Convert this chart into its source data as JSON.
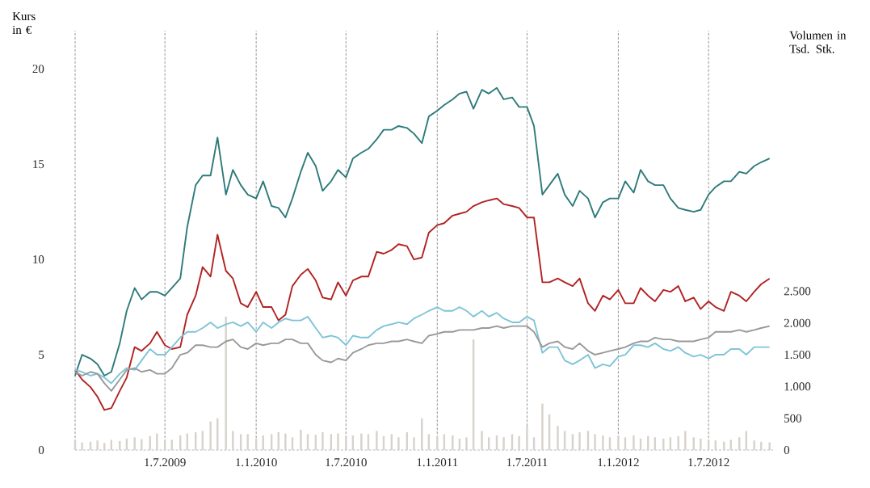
{
  "chart_data": {
    "type": "line",
    "ylabel": "Kurs in €",
    "y2label": "Volumen in Tsd. Stk.",
    "x": [
      "2009-01-01",
      "2009-01-15",
      "2009-02-01",
      "2009-02-15",
      "2009-03-01",
      "2009-03-15",
      "2009-04-01",
      "2009-04-15",
      "2009-05-01",
      "2009-05-15",
      "2009-06-01",
      "2009-06-15",
      "2009-07-01",
      "2009-07-15",
      "2009-08-01",
      "2009-08-15",
      "2009-09-01",
      "2009-09-15",
      "2009-10-01",
      "2009-10-15",
      "2009-11-01",
      "2009-11-15",
      "2009-12-01",
      "2009-12-15",
      "2010-01-01",
      "2010-01-15",
      "2010-02-01",
      "2010-02-15",
      "2010-03-01",
      "2010-03-15",
      "2010-04-01",
      "2010-04-15",
      "2010-05-01",
      "2010-05-15",
      "2010-06-01",
      "2010-06-15",
      "2010-07-01",
      "2010-07-15",
      "2010-08-01",
      "2010-08-15",
      "2010-09-01",
      "2010-09-15",
      "2010-10-01",
      "2010-10-15",
      "2010-11-01",
      "2010-11-15",
      "2010-12-01",
      "2010-12-15",
      "2011-01-01",
      "2011-01-15",
      "2011-02-01",
      "2011-02-15",
      "2011-03-01",
      "2011-03-15",
      "2011-04-01",
      "2011-04-15",
      "2011-05-01",
      "2011-05-15",
      "2011-06-01",
      "2011-06-15",
      "2011-07-01",
      "2011-07-15",
      "2011-08-01",
      "2011-08-15",
      "2011-09-01",
      "2011-09-15",
      "2011-10-01",
      "2011-10-15",
      "2011-11-01",
      "2011-11-15",
      "2011-12-01",
      "2011-12-15",
      "2012-01-01",
      "2012-01-15",
      "2012-02-01",
      "2012-02-15",
      "2012-03-01",
      "2012-03-15",
      "2012-04-01",
      "2012-04-15",
      "2012-05-01",
      "2012-05-15",
      "2012-06-01",
      "2012-06-15",
      "2012-07-01",
      "2012-07-15",
      "2012-08-01",
      "2012-08-15",
      "2012-09-01",
      "2012-09-15",
      "2012-10-01",
      "2012-10-15",
      "2012-11-01"
    ],
    "xlim": [
      "2009-01-01",
      "2012-11-08"
    ],
    "xticks": [
      {
        "value": "2009-01-01",
        "label": null
      },
      {
        "value": "2009-07-01",
        "label": "1.7.2009"
      },
      {
        "value": "2010-01-01",
        "label": "1.1.2010"
      },
      {
        "value": "2010-07-01",
        "label": "1.7.2010"
      },
      {
        "value": "2011-01-01",
        "label": "1.1.2011"
      },
      {
        "value": "2011-07-01",
        "label": "1.7.2011"
      },
      {
        "value": "2012-01-01",
        "label": "1.1.2012"
      },
      {
        "value": "2012-07-01",
        "label": "1.7.2012"
      }
    ],
    "ylim": [
      0,
      22
    ],
    "yticks": [
      0,
      5,
      10,
      15,
      20
    ],
    "y2lim": [
      0,
      6600
    ],
    "y2ticks": [
      0,
      500,
      {
        "value": 1000,
        "label": "1.000"
      },
      {
        "value": 1500,
        "label": "1.500"
      },
      {
        "value": 2000,
        "label": "2.000"
      },
      {
        "value": 2500,
        "label": "2.500"
      }
    ],
    "grid": "x",
    "series": [
      {
        "type": "bar",
        "axis": "y2",
        "color": "#d6d2cc",
        "values": [
          150,
          120,
          130,
          150,
          110,
          160,
          140,
          180,
          200,
          170,
          220,
          260,
          150,
          160,
          230,
          260,
          280,
          300,
          450,
          500,
          2100,
          300,
          250,
          250,
          180,
          230,
          250,
          280,
          260,
          200,
          320,
          250,
          240,
          280,
          250,
          260,
          200,
          230,
          260,
          250,
          300,
          220,
          250,
          200,
          280,
          200,
          500,
          250,
          220,
          250,
          230,
          180,
          200,
          1740,
          300,
          200,
          230,
          200,
          250,
          220,
          380,
          200,
          730,
          560,
          380,
          300,
          250,
          280,
          300,
          250,
          230,
          200,
          220,
          200,
          230,
          180,
          220,
          200,
          180,
          200,
          220,
          300,
          200,
          180,
          160,
          150,
          130,
          160,
          200,
          300,
          150,
          130,
          120
        ]
      },
      {
        "color": "#2e7a7a",
        "values": [
          3.9,
          5.0,
          4.8,
          4.5,
          3.9,
          4.1,
          5.6,
          7.3,
          8.5,
          7.9,
          8.3,
          8.3,
          8.1,
          8.5,
          9.0,
          11.7,
          13.9,
          14.4,
          14.4,
          16.4,
          13.4,
          14.7,
          13.9,
          13.4,
          13.2,
          14.1,
          12.8,
          12.7,
          12.2,
          13.2,
          14.6,
          15.6,
          14.9,
          13.6,
          14.1,
          14.7,
          14.3,
          15.3,
          15.6,
          15.8,
          16.3,
          16.8,
          16.8,
          17.0,
          16.9,
          16.6,
          16.1,
          17.5,
          17.8,
          18.1,
          18.4,
          18.7,
          18.8,
          17.9,
          18.9,
          18.7,
          19.0,
          18.4,
          18.5,
          18.0,
          18.0,
          17.0,
          13.4,
          13.9,
          14.5,
          13.4,
          12.8,
          13.6,
          13.2,
          12.2,
          13.0,
          13.2,
          13.2,
          14.1,
          13.5,
          14.7,
          14.1,
          13.9,
          13.9,
          13.2,
          12.7,
          12.6,
          12.5,
          12.6,
          13.4,
          13.8,
          14.1,
          14.1,
          14.6,
          14.5,
          14.9,
          15.1,
          15.3
        ]
      },
      {
        "color": "#b22222",
        "values": [
          4.2,
          3.7,
          3.3,
          2.8,
          2.1,
          2.2,
          3.1,
          3.8,
          5.4,
          5.2,
          5.6,
          6.2,
          5.5,
          5.3,
          5.4,
          7.1,
          8.1,
          9.6,
          9.1,
          11.3,
          9.4,
          9.0,
          7.7,
          7.5,
          8.3,
          7.5,
          7.5,
          6.8,
          7.1,
          8.6,
          9.2,
          9.5,
          8.9,
          8.0,
          7.9,
          8.8,
          8.1,
          8.9,
          9.1,
          9.1,
          10.4,
          10.3,
          10.5,
          10.8,
          10.7,
          10.0,
          10.1,
          11.4,
          11.8,
          11.9,
          12.3,
          12.4,
          12.5,
          12.8,
          13.0,
          13.1,
          13.2,
          12.9,
          12.8,
          12.7,
          12.2,
          12.2,
          8.8,
          8.8,
          9.0,
          8.8,
          8.6,
          9.0,
          7.7,
          7.3,
          8.1,
          7.9,
          8.4,
          7.7,
          7.7,
          8.5,
          8.1,
          7.8,
          8.4,
          8.3,
          8.6,
          7.8,
          8.0,
          7.4,
          7.8,
          7.5,
          7.3,
          8.3,
          8.1,
          7.8,
          8.3,
          8.7,
          9.0
        ]
      },
      {
        "color": "#7ec4d8",
        "values": [
          4.2,
          4.1,
          3.9,
          4.0,
          3.8,
          3.5,
          4.0,
          4.3,
          4.2,
          4.7,
          5.3,
          5.0,
          5.0,
          5.4,
          5.9,
          6.2,
          6.2,
          6.4,
          6.7,
          6.4,
          6.6,
          6.7,
          6.5,
          6.7,
          6.2,
          6.7,
          6.4,
          6.7,
          6.9,
          6.8,
          6.8,
          7.0,
          6.4,
          5.9,
          6.0,
          5.9,
          5.5,
          6.0,
          5.9,
          5.9,
          6.3,
          6.5,
          6.6,
          6.7,
          6.6,
          6.9,
          7.1,
          7.3,
          7.5,
          7.3,
          7.3,
          7.5,
          7.3,
          7.0,
          7.3,
          7.0,
          7.2,
          6.9,
          6.7,
          6.7,
          7.0,
          6.8,
          5.1,
          5.4,
          5.4,
          4.7,
          4.5,
          4.7,
          5.0,
          4.3,
          4.5,
          4.4,
          4.9,
          5.0,
          5.5,
          5.5,
          5.4,
          5.6,
          5.3,
          5.2,
          5.4,
          5.1,
          4.9,
          5.0,
          4.8,
          5.0,
          5.0,
          5.3,
          5.3,
          5.0,
          5.4,
          5.4,
          5.4
        ]
      },
      {
        "color": "#999999",
        "values": [
          4.1,
          3.9,
          4.1,
          4.0,
          3.5,
          3.1,
          3.7,
          4.2,
          4.3,
          4.1,
          4.2,
          4.0,
          4.0,
          4.3,
          5.0,
          5.1,
          5.5,
          5.5,
          5.4,
          5.4,
          5.7,
          5.8,
          5.4,
          5.3,
          5.6,
          5.5,
          5.6,
          5.6,
          5.8,
          5.8,
          5.6,
          5.6,
          5.0,
          4.7,
          4.6,
          4.8,
          4.7,
          5.1,
          5.3,
          5.5,
          5.6,
          5.6,
          5.7,
          5.7,
          5.8,
          5.7,
          5.6,
          6.0,
          6.1,
          6.2,
          6.2,
          6.3,
          6.3,
          6.3,
          6.4,
          6.4,
          6.5,
          6.4,
          6.5,
          6.5,
          6.5,
          6.2,
          5.4,
          5.6,
          5.7,
          5.4,
          5.3,
          5.6,
          5.2,
          5.0,
          5.1,
          5.2,
          5.3,
          5.4,
          5.6,
          5.7,
          5.7,
          5.9,
          5.8,
          5.8,
          5.7,
          5.7,
          5.7,
          5.8,
          5.9,
          6.2,
          6.2,
          6.2,
          6.3,
          6.2,
          6.3,
          6.4,
          6.5
        ]
      }
    ]
  }
}
